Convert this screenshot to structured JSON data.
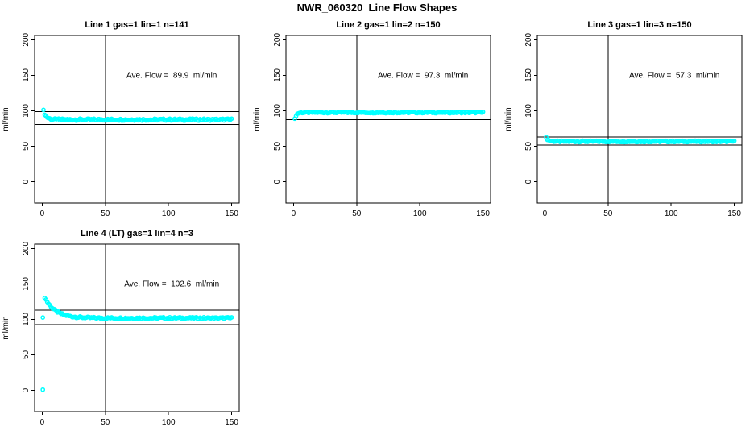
{
  "page_title": "NWR_060320  Line Flow Shapes",
  "colors": {
    "marker": "#00FFFF",
    "axis": "#000000",
    "background": "#FFFFFF",
    "text": "#000000"
  },
  "chart_data": [
    {
      "type": "scatter",
      "title": "Line 1 gas=1 lin=1 n=141",
      "annotation": "Ave. Flow =  89.9  ml/min",
      "ave_flow_ml_min": 89.9,
      "n": 141,
      "xlabel": "",
      "ylabel": "ml/min",
      "xlim": [
        0,
        150
      ],
      "ylim": [
        0,
        200
      ],
      "x_ticks": [
        0,
        50,
        100,
        150
      ],
      "y_ticks": [
        0,
        50,
        100,
        150,
        200
      ],
      "vline_x": 50,
      "hlines": [
        98.9,
        80.9
      ],
      "series": {
        "name": "flow",
        "start_x": 1,
        "end_x": 150,
        "start_value": 100,
        "flat_value": 87.5,
        "decay": 0.45,
        "noise": 1.4
      },
      "outliers": []
    },
    {
      "type": "scatter",
      "title": "Line 2 gas=1 lin=2 n=150",
      "annotation": "Ave. Flow =  97.3  ml/min",
      "ave_flow_ml_min": 97.3,
      "n": 150,
      "xlabel": "",
      "ylabel": "ml/min",
      "xlim": [
        0,
        150
      ],
      "ylim": [
        0,
        200
      ],
      "x_ticks": [
        0,
        50,
        100,
        150
      ],
      "y_ticks": [
        0,
        50,
        100,
        150,
        200
      ],
      "vline_x": 50,
      "hlines": [
        107.0,
        87.6
      ],
      "series": {
        "name": "flow",
        "start_x": 1,
        "end_x": 150,
        "start_value": 88,
        "flat_value": 97.5,
        "decay": 0.8,
        "noise": 1.0
      },
      "outliers": []
    },
    {
      "type": "scatter",
      "title": "Line 3 gas=1 lin=3 n=150",
      "annotation": "Ave. Flow =  57.3  ml/min",
      "ave_flow_ml_min": 57.3,
      "n": 150,
      "xlabel": "",
      "ylabel": "ml/min",
      "xlim": [
        0,
        150
      ],
      "ylim": [
        0,
        200
      ],
      "x_ticks": [
        0,
        50,
        100,
        150
      ],
      "y_ticks": [
        0,
        50,
        100,
        150,
        200
      ],
      "vline_x": 50,
      "hlines": [
        63.0,
        51.6
      ],
      "series": {
        "name": "flow",
        "start_x": 1,
        "end_x": 150,
        "start_value": 62,
        "flat_value": 56.8,
        "decay": 0.55,
        "noise": 1.0
      },
      "outliers": []
    },
    {
      "type": "scatter",
      "title": "Line 4 (LT) gas=1 lin=4 n=3",
      "annotation": "Ave. Flow =  102.6  ml/min",
      "ave_flow_ml_min": 102.6,
      "n": 3,
      "xlabel": "",
      "ylabel": "ml/min",
      "xlim": [
        0,
        150
      ],
      "ylim": [
        0,
        200
      ],
      "x_ticks": [
        0,
        50,
        100,
        150
      ],
      "y_ticks": [
        0,
        50,
        100,
        150,
        200
      ],
      "vline_x": 50,
      "hlines": [
        112.9,
        92.3
      ],
      "series": {
        "name": "flow",
        "start_x": 2,
        "end_x": 150,
        "start_value": 131,
        "flat_value": 101.8,
        "decay": 0.12,
        "noise": 1.2
      },
      "outliers": [
        [
          0.5,
          102.6
        ],
        [
          0.5,
          1
        ]
      ]
    }
  ]
}
